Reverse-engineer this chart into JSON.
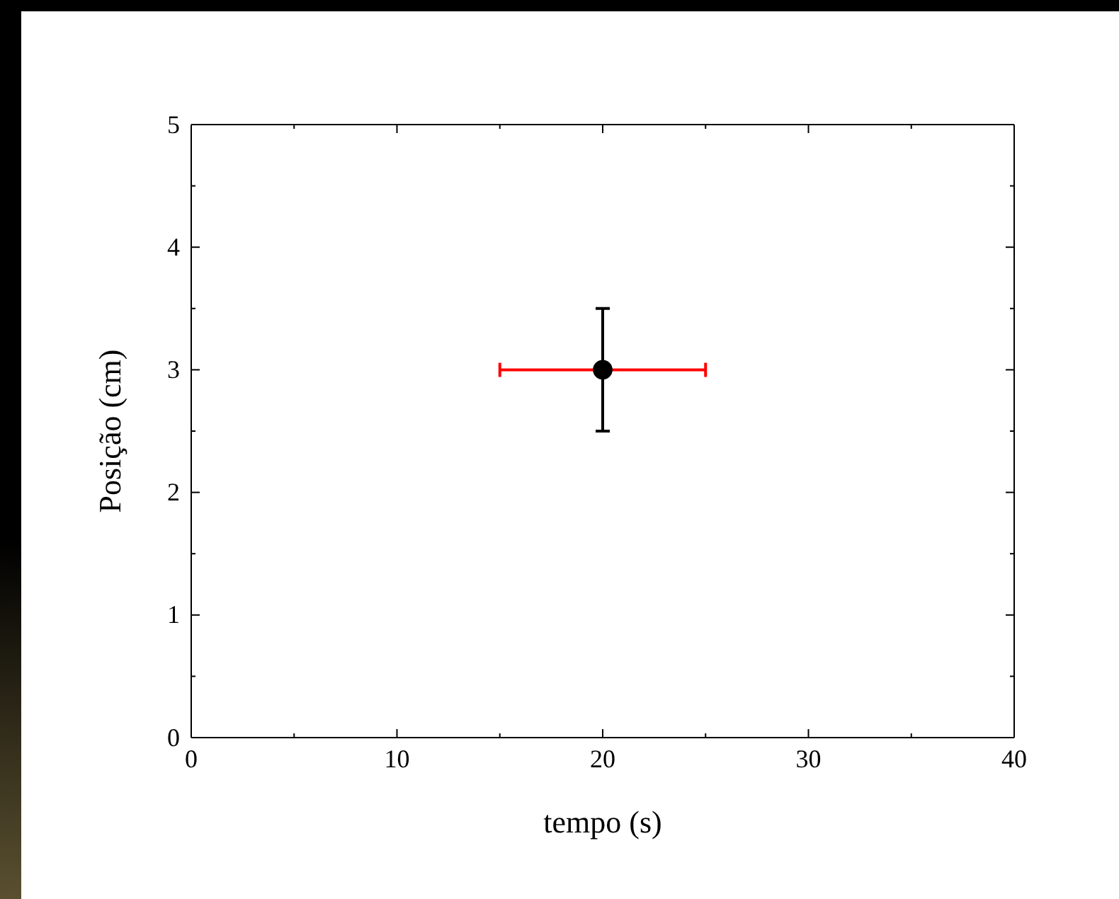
{
  "chart_data": {
    "type": "scatter",
    "xlabel": "tempo (s)",
    "ylabel": "Posição (cm)",
    "x": [
      20
    ],
    "series": [
      {
        "color": "#000000",
        "values": [
          3
        ],
        "errors": [
          0.5
        ],
        "xerrors": [
          5
        ]
      }
    ],
    "xlim": [
      0,
      40
    ],
    "ylim": [
      0,
      5
    ],
    "xticks": [
      0,
      {
        "value": 5,
        "label": null
      },
      10,
      {
        "value": 15,
        "label": null
      },
      20,
      {
        "value": 25,
        "label": null
      },
      30,
      {
        "value": 35,
        "label": null
      },
      40
    ],
    "yticks": [
      0,
      {
        "value": 0.5,
        "label": null
      },
      1,
      {
        "value": 1.5,
        "label": null
      },
      2,
      {
        "value": 2.5,
        "label": null
      },
      3,
      {
        "value": 3.5,
        "label": null
      },
      4,
      {
        "value": 4.5,
        "label": null
      },
      5
    ],
    "marker": "circle",
    "grid": false
  }
}
